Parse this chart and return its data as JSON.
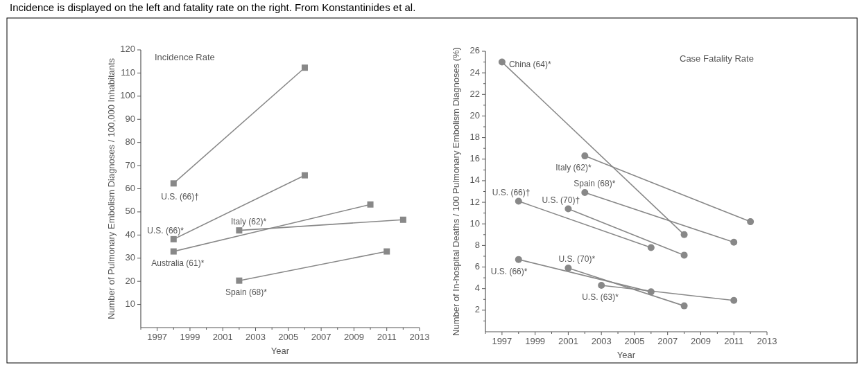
{
  "chart_data": [
    {
      "type": "line",
      "title": "Incidence Rate",
      "xlabel": "Year",
      "ylabel": "Number of Pulmonary Embolism Diagnoses / 100,000 Inhabitants",
      "annotations": [
        "Incidence is displayed on the left and fatality rate on the right. From Konstantinides et al."
      ],
      "xlim": [
        1996,
        2013
      ],
      "xticks": [
        {
          "value": 1996,
          "label": null
        },
        1997,
        {
          "value": 1998,
          "label": null
        },
        1999,
        {
          "value": 2000,
          "label": null
        },
        2001,
        {
          "value": 2002,
          "label": null
        },
        2003,
        {
          "value": 2004,
          "label": null
        },
        2005,
        {
          "value": 2006,
          "label": null
        },
        2007,
        {
          "value": 2008,
          "label": null
        },
        2009,
        {
          "value": 2010,
          "label": null
        },
        2011,
        {
          "value": 2012,
          "label": null
        },
        2013
      ],
      "ylim": [
        0,
        120
      ],
      "yticks": [
        10,
        20,
        30,
        40,
        50,
        60,
        70,
        80,
        90,
        100,
        110,
        120
      ],
      "marker": "square",
      "grid": false,
      "series": [
        {
          "name": "U.S. (66)†",
          "color": "#888888",
          "x": [
            1998,
            2006
          ],
          "values": [
            62.3,
            112.3
          ]
        },
        {
          "name": "U.S. (66)*",
          "color": "#888888",
          "x": [
            1998,
            2006
          ],
          "values": [
            38.2,
            65.8
          ]
        },
        {
          "name": "Australia (61)*",
          "color": "#888888",
          "x": [
            1998,
            2010
          ],
          "values": [
            32.9,
            53.2
          ]
        },
        {
          "name": "Italy (62)*",
          "color": "#888888",
          "x": [
            2002,
            2012
          ],
          "values": [
            42,
            46.6
          ]
        },
        {
          "name": "Spain (68)*",
          "color": "#888888",
          "x": [
            2002,
            2011
          ],
          "values": [
            20.3,
            32.9
          ]
        }
      ]
    },
    {
      "type": "line",
      "title": "Case Fatality Rate",
      "xlabel": "Year",
      "ylabel": "Number of In-hospital Deaths / 100 Pulmonary Embolism Diagnoses (%)",
      "xlim": [
        1996,
        2013
      ],
      "xticks": [
        {
          "value": 1996,
          "label": null
        },
        1997,
        {
          "value": 1998,
          "label": null
        },
        1999,
        {
          "value": 2000,
          "label": null
        },
        2001,
        {
          "value": 2002,
          "label": null
        },
        2003,
        {
          "value": 2004,
          "label": null
        },
        2005,
        {
          "value": 2006,
          "label": null
        },
        2007,
        {
          "value": 2008,
          "label": null
        },
        2009,
        {
          "value": 2010,
          "label": null
        },
        2011,
        {
          "value": 2012,
          "label": null
        },
        2013
      ],
      "ylim": [
        0,
        26
      ],
      "yticks": [
        {
          "value": 1,
          "label": null
        },
        2,
        {
          "value": 3,
          "label": null
        },
        4,
        {
          "value": 5,
          "label": null
        },
        6,
        {
          "value": 7,
          "label": null
        },
        8,
        {
          "value": 9,
          "label": null
        },
        10,
        {
          "value": 11,
          "label": null
        },
        12,
        {
          "value": 13,
          "label": null
        },
        14,
        {
          "value": 15,
          "label": null
        },
        16,
        {
          "value": 17,
          "label": null
        },
        18,
        {
          "value": 19,
          "label": null
        },
        20,
        {
          "value": 21,
          "label": null
        },
        22,
        {
          "value": 23,
          "label": null
        },
        24,
        {
          "value": 25,
          "label": null
        },
        26
      ],
      "marker": "circle",
      "grid": false,
      "series": [
        {
          "name": "China (64)*",
          "color": "#888888",
          "x": [
            1997,
            2008
          ],
          "values": [
            25.0,
            9.0
          ]
        },
        {
          "name": "Italy (62)*",
          "color": "#888888",
          "x": [
            2002,
            2012
          ],
          "values": [
            16.3,
            10.2
          ]
        },
        {
          "name": "Spain (68)*",
          "color": "#888888",
          "x": [
            2002,
            2011
          ],
          "values": [
            12.9,
            8.3
          ]
        },
        {
          "name": "U.S. (66)†",
          "color": "#888888",
          "x": [
            1998,
            2006
          ],
          "values": [
            12.1,
            7.8
          ]
        },
        {
          "name": "U.S. (70)†",
          "color": "#888888",
          "x": [
            2001,
            2008
          ],
          "values": [
            11.4,
            7.1
          ]
        },
        {
          "name": "U.S. (66)*",
          "color": "#888888",
          "x": [
            1998,
            2006
          ],
          "values": [
            6.7,
            3.7
          ]
        },
        {
          "name": "U.S. (70)*",
          "color": "#888888",
          "x": [
            2001,
            2008
          ],
          "values": [
            5.9,
            2.4
          ]
        },
        {
          "name": "U.S. (63)*",
          "color": "#888888",
          "x": [
            2003,
            2011
          ],
          "values": [
            4.3,
            2.9
          ]
        }
      ]
    }
  ]
}
